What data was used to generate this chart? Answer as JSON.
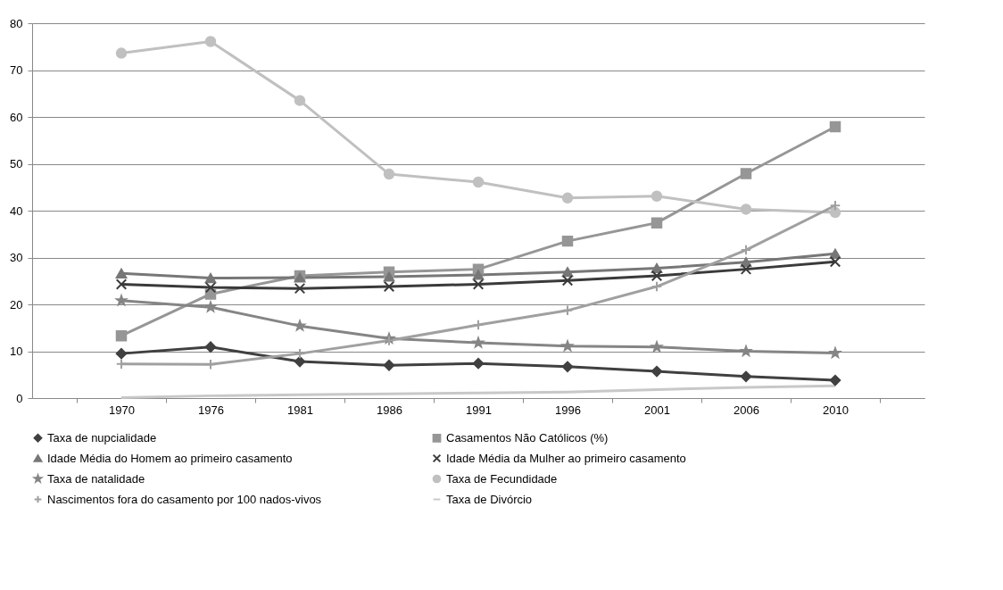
{
  "chart_data": {
    "type": "line",
    "categories": [
      "1970",
      "1976",
      "1981",
      "1986",
      "1991",
      "1996",
      "2001",
      "2006",
      "2010"
    ],
    "ylim": [
      0,
      80
    ],
    "yticks": [
      0,
      10,
      20,
      30,
      40,
      50,
      60,
      70,
      80
    ],
    "grid": "y",
    "legend": "bottom",
    "series": [
      {
        "name": "Taxa de nupcialidade",
        "color": "#404040",
        "marker": "diamond",
        "values": [
          9.5,
          10.9,
          7.8,
          7.0,
          7.4,
          6.7,
          5.7,
          4.6,
          3.8
        ]
      },
      {
        "name": "Casamentos Não Católicos (%)",
        "color": "#969696",
        "marker": "square",
        "values": [
          13.3,
          22.2,
          26.1,
          26.9,
          27.5,
          33.5,
          37.4,
          47.9,
          57.9
        ]
      },
      {
        "name": "Idade Média do Homem ao primeiro casamento",
        "color": "#777777",
        "marker": "triangle",
        "values": [
          26.6,
          25.6,
          25.7,
          25.9,
          26.3,
          26.9,
          27.7,
          29.0,
          30.8
        ]
      },
      {
        "name": "Idade Média da Mulher ao primeiro casamento",
        "color": "#3a3a3a",
        "marker": "cross",
        "values": [
          24.3,
          23.6,
          23.4,
          23.8,
          24.3,
          25.1,
          26.1,
          27.5,
          29.1
        ]
      },
      {
        "name": "Taxa de natalidade",
        "color": "#858585",
        "marker": "star",
        "values": [
          20.8,
          19.4,
          15.4,
          12.7,
          11.8,
          11.1,
          10.9,
          10.0,
          9.6
        ]
      },
      {
        "name": "Taxa de Fecundidade",
        "color": "#c0c0c0",
        "marker": "circle",
        "values": [
          73.6,
          76.1,
          63.5,
          47.8,
          46.1,
          42.7,
          43.1,
          40.3,
          39.6
        ]
      },
      {
        "name": "Nascimentos fora do casamento por 100 nados-vivos",
        "color": "#a0a0a0",
        "marker": "plus",
        "values": [
          7.3,
          7.2,
          9.5,
          12.3,
          15.6,
          18.7,
          23.8,
          31.6,
          41.1
        ]
      },
      {
        "name": "Taxa de Divórcio",
        "color": "#c8c8c8",
        "marker": "none",
        "values": [
          0.1,
          0.5,
          0.7,
          0.9,
          1.1,
          1.3,
          1.8,
          2.3,
          2.6
        ]
      }
    ]
  }
}
